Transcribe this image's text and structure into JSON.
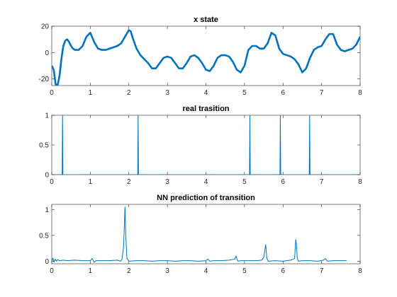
{
  "chart_data": [
    {
      "type": "line",
      "title": "x state",
      "xlim": [
        0,
        8
      ],
      "ylim": [
        -25,
        20
      ],
      "xticks": [
        0,
        1,
        2,
        3,
        4,
        5,
        6,
        7,
        8
      ],
      "yticks": [
        -20,
        0,
        20
      ],
      "grid": false,
      "series": [
        {
          "color": "#0072BD",
          "line_width": "thick",
          "x": [
            0,
            0.05,
            0.1,
            0.15,
            0.2,
            0.25,
            0.3,
            0.35,
            0.4,
            0.45,
            0.5,
            0.55,
            0.6,
            0.7,
            0.8,
            0.9,
            1.0,
            1.1,
            1.2,
            1.3,
            1.4,
            1.5,
            1.6,
            1.7,
            1.8,
            1.9,
            2.0,
            2.05,
            2.1,
            2.2,
            2.3,
            2.4,
            2.5,
            2.6,
            2.7,
            2.8,
            2.9,
            3.0,
            3.1,
            3.2,
            3.3,
            3.4,
            3.5,
            3.6,
            3.7,
            3.8,
            3.9,
            4.0,
            4.1,
            4.2,
            4.3,
            4.4,
            4.5,
            4.6,
            4.7,
            4.8,
            4.9,
            5.0,
            5.1,
            5.2,
            5.3,
            5.4,
            5.5,
            5.6,
            5.7,
            5.8,
            5.9,
            6.0,
            6.1,
            6.2,
            6.3,
            6.4,
            6.5,
            6.6,
            6.7,
            6.8,
            6.9,
            7.0,
            7.1,
            7.2,
            7.3,
            7.4,
            7.5,
            7.6,
            7.7,
            7.8,
            7.9,
            8.0
          ],
          "y": [
            -10,
            -13,
            -24,
            -25,
            -18,
            -5,
            5,
            9,
            10,
            8,
            5,
            3,
            2,
            2,
            5,
            12,
            15,
            8,
            3,
            2,
            2,
            3,
            4,
            5,
            7,
            12,
            17,
            16,
            11,
            3,
            -2,
            -5,
            -8,
            -12,
            -12,
            -8,
            -4,
            -3,
            -4,
            -8,
            -12,
            -12,
            -8,
            -3,
            -2,
            -4,
            -8,
            -13,
            -14,
            -10,
            -4,
            -2,
            -2,
            -3,
            -7,
            -13,
            -15,
            -10,
            2,
            5,
            5,
            3,
            3,
            7,
            15,
            13,
            3,
            -1,
            -2,
            -3,
            -5,
            -9,
            -15,
            -12,
            -4,
            2,
            4,
            5,
            10,
            14,
            14,
            6,
            2,
            1,
            2,
            3,
            6,
            12
          ]
        }
      ]
    },
    {
      "type": "line",
      "title": "real trasition",
      "xlim": [
        0,
        8
      ],
      "ylim": [
        0,
        1
      ],
      "xticks": [
        0,
        1,
        2,
        3,
        4,
        5,
        6,
        7,
        8
      ],
      "yticks": [
        0,
        0.5,
        1
      ],
      "grid": false,
      "series": [
        {
          "color": "#0072BD",
          "line_width": "thin",
          "x": [
            0,
            0.27,
            0.28,
            0.29,
            2.23,
            2.24,
            2.25,
            5.13,
            5.14,
            5.15,
            5.92,
            5.93,
            5.94,
            6.68,
            6.69,
            6.7,
            8.0
          ],
          "y": [
            0,
            0,
            1,
            0,
            0,
            1,
            0,
            0,
            1,
            0,
            0,
            1,
            0,
            0,
            1,
            0,
            0
          ]
        }
      ]
    },
    {
      "type": "line",
      "title": "NN prediction of transition",
      "xlim": [
        0,
        8
      ],
      "ylim": [
        -0.05,
        1.1
      ],
      "xticks": [
        0,
        1,
        2,
        3,
        4,
        5,
        6,
        7,
        8
      ],
      "yticks": [
        0,
        0.5,
        1
      ],
      "grid": false,
      "series": [
        {
          "color": "#0072BD",
          "line_width": "thin",
          "x": [
            0,
            0.03,
            0.06,
            0.09,
            0.12,
            0.15,
            0.2,
            0.3,
            0.4,
            0.6,
            0.8,
            1.0,
            1.05,
            1.1,
            1.15,
            1.3,
            1.5,
            1.7,
            1.78,
            1.82,
            1.86,
            1.88,
            1.9,
            1.92,
            1.95,
            2.0,
            2.2,
            2.4,
            2.6,
            2.8,
            3.0,
            3.2,
            3.4,
            3.6,
            3.8,
            4.0,
            4.05,
            4.1,
            4.2,
            4.4,
            4.6,
            4.75,
            4.78,
            4.8,
            4.83,
            4.9,
            5.1,
            5.3,
            5.45,
            5.5,
            5.55,
            5.58,
            5.62,
            5.8,
            6.0,
            6.2,
            6.3,
            6.33,
            6.35,
            6.37,
            6.4,
            6.5,
            6.7,
            6.9,
            7.05,
            7.1,
            7.15,
            7.3,
            7.5,
            7.65
          ],
          "y": [
            0,
            0.06,
            -0.02,
            0.04,
            0.0,
            0.03,
            0.01,
            0.02,
            0.01,
            0.02,
            0.01,
            0.01,
            0.05,
            -0.02,
            0.01,
            0.01,
            0.01,
            0.02,
            0.0,
            0.03,
            0.25,
            0.6,
            1.05,
            0.5,
            0.05,
            0.0,
            0.01,
            0.01,
            0.0,
            0.01,
            0.01,
            0.0,
            0.01,
            0.01,
            0.0,
            0.01,
            0.04,
            0.0,
            0.01,
            0.01,
            0.02,
            0.04,
            0.1,
            0.05,
            0.0,
            0.01,
            0.01,
            0.01,
            0.02,
            0.08,
            0.32,
            0.05,
            0.0,
            0.01,
            0.0,
            0.02,
            0.05,
            0.42,
            0.3,
            0.05,
            0.0,
            0.01,
            0.01,
            0.0,
            0.02,
            0.05,
            0.0,
            0.01,
            0.01,
            0.01
          ]
        }
      ]
    }
  ]
}
